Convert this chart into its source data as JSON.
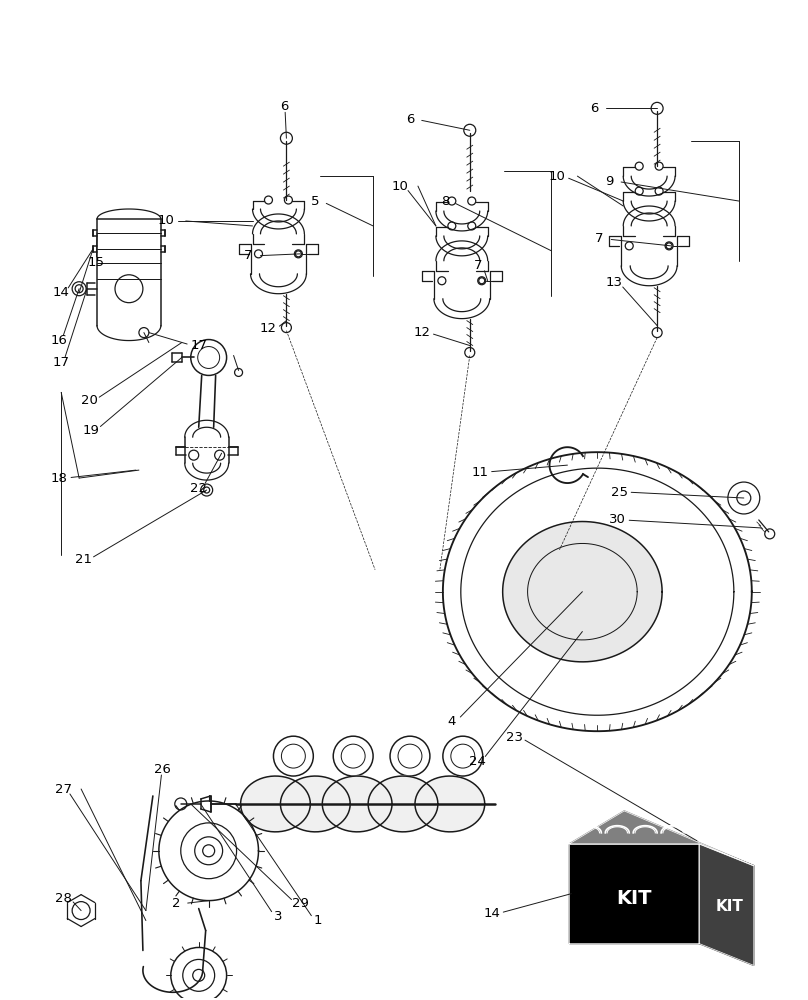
{
  "bg_color": "#ffffff",
  "line_color": "#1a1a1a",
  "fig_width": 8.08,
  "fig_height": 10.0,
  "dpi": 100,
  "lw": 0.9
}
